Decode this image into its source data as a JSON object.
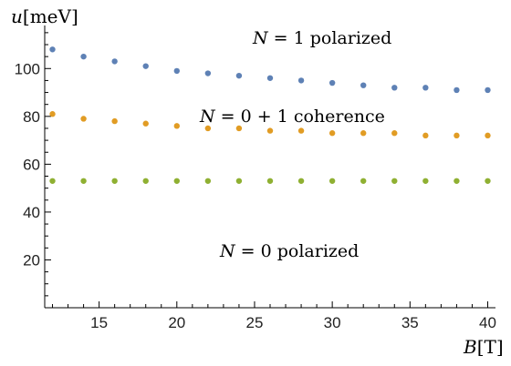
{
  "chart_data": {
    "type": "scatter",
    "title": "",
    "xlabel": {
      "var": "B",
      "unit": "[T]"
    },
    "ylabel": {
      "var": "u",
      "unit": "[meV]"
    },
    "xlim": [
      11.5,
      40.5
    ],
    "ylim": [
      0,
      118
    ],
    "x_ticks": [
      15,
      20,
      25,
      30,
      35,
      40
    ],
    "y_ticks": [
      20,
      40,
      60,
      80,
      100
    ],
    "grid": false,
    "x": [
      12,
      14,
      16,
      18,
      20,
      22,
      24,
      26,
      28,
      30,
      32,
      34,
      36,
      38,
      40
    ],
    "series": [
      {
        "color": "#5e81b5",
        "values": [
          108,
          105,
          103,
          101,
          99,
          98,
          97,
          96,
          95,
          94,
          93,
          92,
          92,
          91,
          91
        ]
      },
      {
        "color": "#e19c24",
        "values": [
          81,
          79,
          78,
          77,
          76,
          75,
          75,
          74,
          74,
          73,
          73,
          73,
          72,
          72,
          72
        ]
      },
      {
        "color": "#8fb032",
        "values": [
          53,
          53,
          53,
          53,
          53,
          53,
          53,
          53,
          53,
          53,
          53,
          53,
          53,
          53,
          53
        ]
      }
    ],
    "annotations": [
      {
        "var": "N",
        "text": " = 1 polarized"
      },
      {
        "var": "N",
        "text": " = 0 + 1 coherence"
      },
      {
        "var": "N",
        "text": " = 0 polarized"
      }
    ]
  }
}
